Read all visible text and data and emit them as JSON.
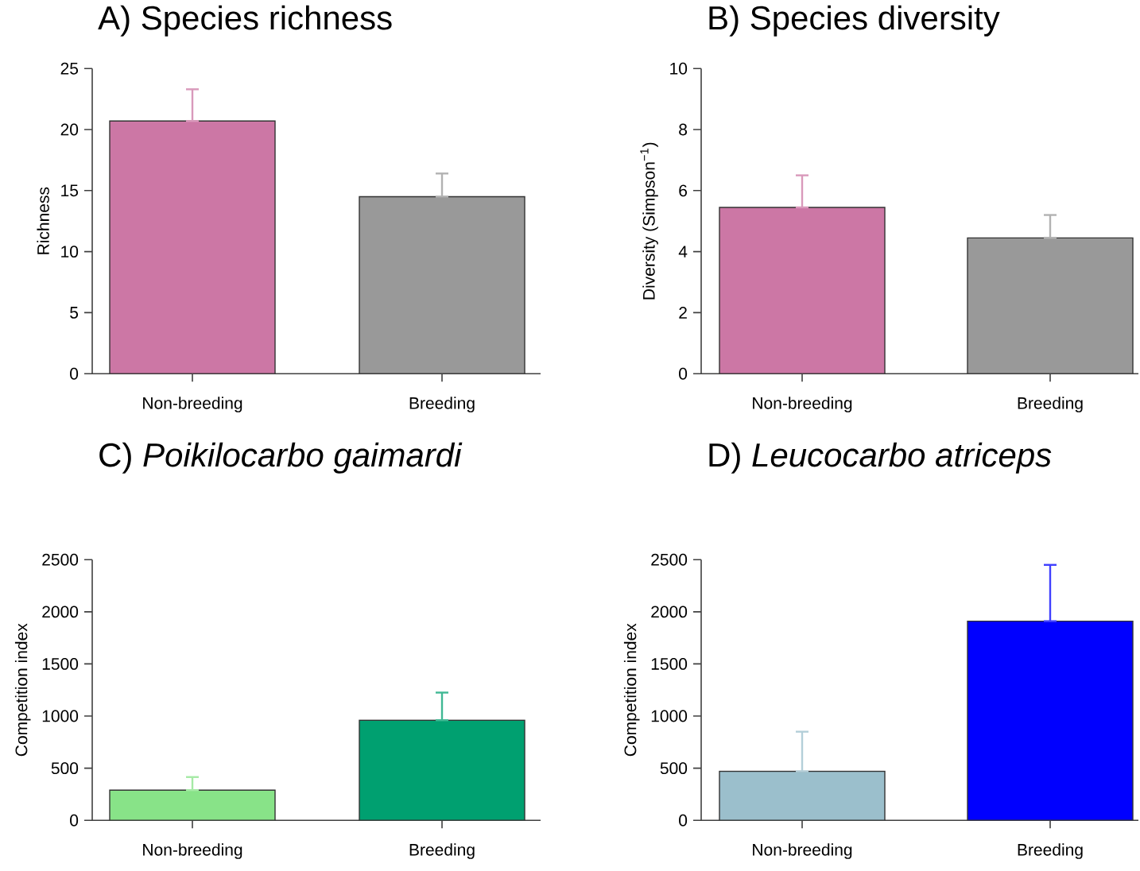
{
  "chart_data": [
    {
      "type": "bar",
      "title": "A) Species richness",
      "ylabel": "Richness",
      "categories": [
        "Non-breeding",
        "Breeding"
      ],
      "values": [
        20.7,
        14.5
      ],
      "colors": [
        "#cc77a5",
        "#999999"
      ],
      "errors": [
        [
          20.7,
          23.3
        ],
        [
          14.5,
          16.4
        ]
      ],
      "ylim": [
        0,
        25
      ],
      "yticks": [
        0,
        5,
        10,
        15,
        20,
        25
      ]
    },
    {
      "type": "bar",
      "title": "B) Species diversity",
      "ylabel": "Diversity (Simpson$^{−1}$)",
      "categories": [
        "Non-breeding",
        "Breeding"
      ],
      "values": [
        5.45,
        4.45
      ],
      "colors": [
        "#cc77a5",
        "#999999"
      ],
      "errors": [
        [
          5.45,
          6.5
        ],
        [
          4.45,
          5.2
        ]
      ],
      "ylim": [
        0,
        10
      ],
      "yticks": [
        0,
        2,
        4,
        6,
        8,
        10
      ]
    },
    {
      "type": "bar",
      "title": "C) *Poikilocarbo gaimardi*",
      "ylabel": "Competition index",
      "categories": [
        "Non-breeding",
        "Breeding"
      ],
      "values": [
        290,
        960
      ],
      "colors": [
        "#88e388",
        "#00a070"
      ],
      "errors": [
        [
          290,
          415
        ],
        [
          960,
          1225
        ]
      ],
      "ylim": [
        0,
        2500
      ],
      "yticks": [
        0,
        500,
        1000,
        1500,
        2000,
        2500
      ]
    },
    {
      "type": "bar",
      "title": "D) *Leucocarbo atriceps*",
      "ylabel": "Competition index",
      "categories": [
        "Non-breeding",
        "Breeding"
      ],
      "values": [
        470,
        1910
      ],
      "colors": [
        "#9bbfcc",
        "#0000ff"
      ],
      "errors": [
        [
          470,
          850
        ],
        [
          1910,
          2450
        ]
      ],
      "ylim": [
        0,
        2500
      ],
      "yticks": [
        0,
        500,
        1000,
        1500,
        2000,
        2500
      ]
    }
  ]
}
